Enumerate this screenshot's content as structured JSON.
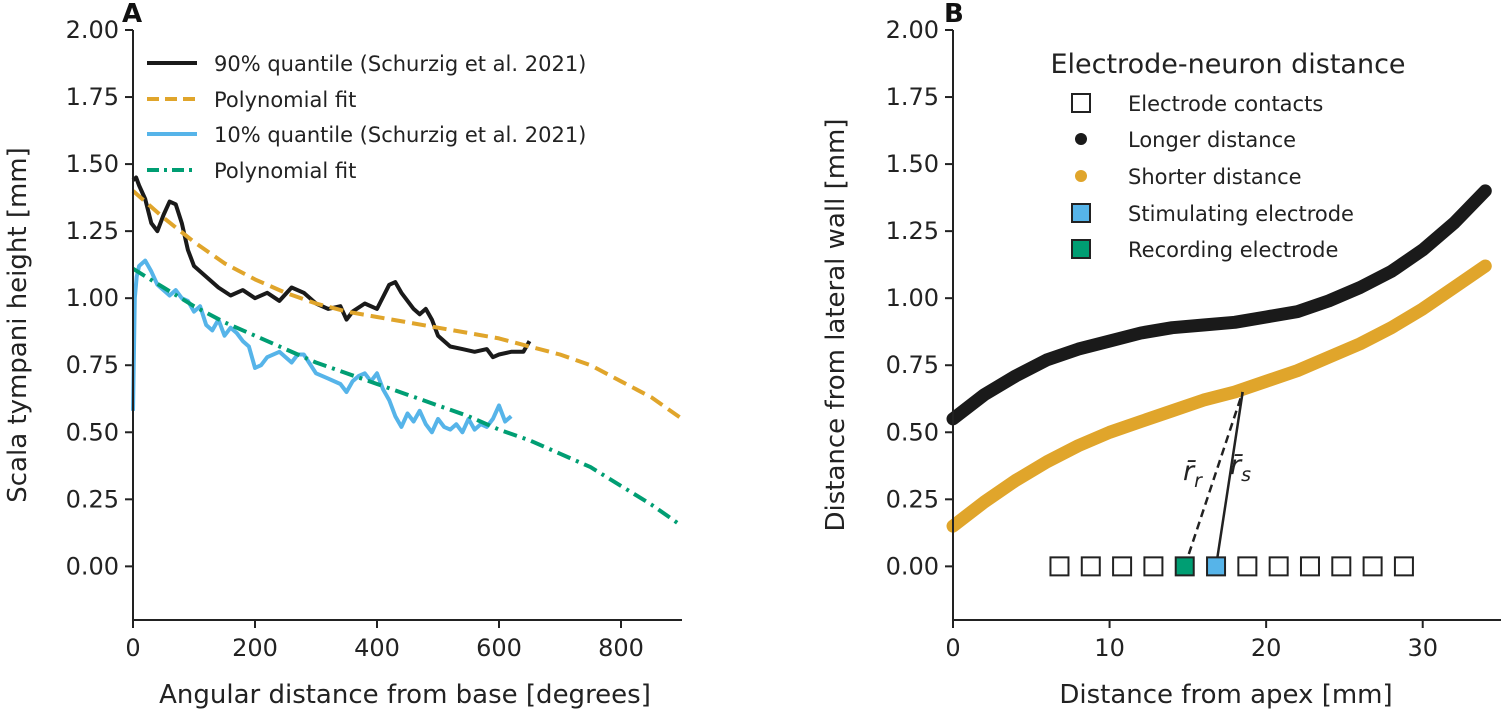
{
  "chart_data": [
    {
      "panel_label": "A",
      "type": "line",
      "xlabel": "Angular distance from base [degrees]",
      "ylabel": "Scala tympani height [mm]",
      "xlim": [
        0,
        900
      ],
      "ylim": [
        -0.2,
        2.0
      ],
      "xticks": [
        0,
        200,
        400,
        600,
        800
      ],
      "yticks": [
        0.0,
        0.25,
        0.5,
        0.75,
        1.0,
        1.25,
        1.5,
        1.75,
        2.0
      ],
      "xtick_labels": [
        "0",
        "200",
        "400",
        "600",
        "800"
      ],
      "ytick_labels": [
        "0.00",
        "0.25",
        "0.50",
        "0.75",
        "1.00",
        "1.25",
        "1.50",
        "1.75",
        "2.00"
      ],
      "legend_position": "top-right",
      "series": [
        {
          "name": "90% quantile (Schurzig et al. 2021)",
          "color": "#1a1a1a",
          "style": "solid",
          "x": [
            0,
            5,
            10,
            20,
            30,
            40,
            50,
            60,
            70,
            80,
            90,
            100,
            120,
            140,
            160,
            180,
            200,
            220,
            240,
            260,
            280,
            300,
            320,
            340,
            350,
            360,
            380,
            400,
            420,
            430,
            440,
            460,
            470,
            480,
            490,
            500,
            520,
            540,
            560,
            580,
            590,
            600,
            620,
            640,
            650
          ],
          "y": [
            1.44,
            1.45,
            1.42,
            1.37,
            1.28,
            1.25,
            1.31,
            1.36,
            1.35,
            1.28,
            1.18,
            1.12,
            1.08,
            1.04,
            1.01,
            1.03,
            1.0,
            1.02,
            0.99,
            1.04,
            1.02,
            0.98,
            0.96,
            0.97,
            0.92,
            0.95,
            0.98,
            0.96,
            1.05,
            1.06,
            1.02,
            0.96,
            0.94,
            0.96,
            0.92,
            0.86,
            0.82,
            0.81,
            0.8,
            0.81,
            0.78,
            0.79,
            0.8,
            0.8,
            0.84
          ]
        },
        {
          "name": "Polynomial fit",
          "color": "#e0a52b",
          "style": "dashed",
          "x": [
            0,
            50,
            100,
            150,
            200,
            250,
            300,
            350,
            400,
            450,
            500,
            550,
            600,
            650,
            700,
            750,
            800,
            850,
            900
          ],
          "y": [
            1.4,
            1.3,
            1.21,
            1.13,
            1.07,
            1.02,
            0.98,
            0.95,
            0.93,
            0.91,
            0.89,
            0.87,
            0.85,
            0.82,
            0.79,
            0.75,
            0.69,
            0.63,
            0.55
          ]
        },
        {
          "name": "10% quantile (Schurzig et al. 2021)",
          "color": "#56b4e9",
          "style": "solid",
          "x": [
            0,
            3,
            6,
            10,
            15,
            20,
            30,
            40,
            50,
            60,
            70,
            80,
            90,
            100,
            110,
            120,
            130,
            140,
            150,
            160,
            170,
            180,
            190,
            200,
            210,
            220,
            240,
            260,
            270,
            280,
            300,
            320,
            340,
            350,
            360,
            370,
            380,
            390,
            400,
            410,
            420,
            430,
            440,
            450,
            460,
            470,
            480,
            490,
            500,
            510,
            520,
            530,
            540,
            550,
            560,
            570,
            580,
            590,
            600,
            610,
            620
          ],
          "y": [
            0.58,
            1.0,
            1.08,
            1.12,
            1.13,
            1.14,
            1.1,
            1.05,
            1.03,
            1.01,
            1.03,
            1.0,
            0.99,
            0.95,
            0.97,
            0.9,
            0.88,
            0.92,
            0.86,
            0.89,
            0.87,
            0.84,
            0.82,
            0.74,
            0.75,
            0.78,
            0.8,
            0.76,
            0.79,
            0.79,
            0.72,
            0.7,
            0.68,
            0.65,
            0.69,
            0.71,
            0.72,
            0.69,
            0.72,
            0.66,
            0.62,
            0.56,
            0.52,
            0.57,
            0.54,
            0.58,
            0.53,
            0.5,
            0.55,
            0.52,
            0.51,
            0.53,
            0.5,
            0.55,
            0.51,
            0.53,
            0.52,
            0.55,
            0.6,
            0.54,
            0.56
          ]
        },
        {
          "name": "Polynomial fit",
          "color": "#009e73",
          "style": "dashdot",
          "x": [
            0,
            50,
            100,
            150,
            200,
            250,
            300,
            350,
            400,
            450,
            500,
            550,
            600,
            650,
            700,
            750,
            800,
            850,
            900
          ],
          "y": [
            1.11,
            1.04,
            0.97,
            0.91,
            0.86,
            0.81,
            0.76,
            0.72,
            0.68,
            0.64,
            0.6,
            0.56,
            0.51,
            0.47,
            0.42,
            0.37,
            0.3,
            0.23,
            0.15
          ]
        }
      ]
    },
    {
      "panel_label": "B",
      "type": "scatter",
      "xlabel": "Distance from apex [mm]",
      "ylabel": "Distance from lateral wall [mm]",
      "xlim": [
        0,
        35
      ],
      "ylim": [
        -0.2,
        2.0
      ],
      "xticks": [
        0,
        10,
        20,
        30
      ],
      "yticks": [
        0.0,
        0.25,
        0.5,
        0.75,
        1.0,
        1.25,
        1.5,
        1.75,
        2.0
      ],
      "xtick_labels": [
        "0",
        "10",
        "20",
        "30"
      ],
      "ytick_labels": [
        "0.00",
        "0.25",
        "0.50",
        "0.75",
        "1.00",
        "1.25",
        "1.50",
        "1.75",
        "2.00"
      ],
      "legend_title": "Electrode-neuron distance",
      "legend_position": "top-center",
      "legend": [
        {
          "label": "Electrode contacts",
          "marker": "square-open",
          "color": "#222222"
        },
        {
          "label": "Longer distance",
          "marker": "circle",
          "color": "#1a1a1a"
        },
        {
          "label": "Shorter distance",
          "marker": "circle",
          "color": "#e0a52b"
        },
        {
          "label": "Stimulating electrode",
          "marker": "square",
          "color": "#56b4e9"
        },
        {
          "label": "Recording electrode",
          "marker": "square",
          "color": "#009e73"
        }
      ],
      "series": [
        {
          "name": "Longer distance",
          "color": "#1a1a1a",
          "x": [
            0,
            2,
            4,
            6,
            8,
            10,
            12,
            14,
            16,
            18,
            20,
            22,
            24,
            26,
            28,
            30,
            32,
            34
          ],
          "y": [
            0.55,
            0.64,
            0.71,
            0.77,
            0.81,
            0.84,
            0.87,
            0.89,
            0.9,
            0.91,
            0.93,
            0.95,
            0.99,
            1.04,
            1.1,
            1.18,
            1.28,
            1.4
          ]
        },
        {
          "name": "Shorter distance",
          "color": "#e0a52b",
          "x": [
            0,
            2,
            4,
            6,
            8,
            10,
            12,
            14,
            16,
            18,
            20,
            22,
            24,
            26,
            28,
            30,
            32,
            34
          ],
          "y": [
            0.15,
            0.24,
            0.32,
            0.39,
            0.45,
            0.5,
            0.54,
            0.58,
            0.62,
            0.65,
            0.69,
            0.73,
            0.78,
            0.83,
            0.89,
            0.96,
            1.04,
            1.12
          ]
        }
      ],
      "electrode_contacts": {
        "x": [
          6.8,
          8.8,
          10.8,
          12.8,
          14.8,
          16.8,
          18.8,
          20.8,
          22.8,
          24.8,
          26.8,
          28.8
        ],
        "y": [
          0,
          0,
          0,
          0,
          0,
          0,
          0,
          0,
          0,
          0,
          0,
          0
        ],
        "recording_index": 4,
        "stimulating_index": 5
      },
      "annotations": [
        {
          "label": "r̄r",
          "main": "r̄",
          "sub": "r",
          "style": "dashed",
          "from": [
            14.8,
            0.0
          ],
          "to": [
            18.5,
            0.65
          ]
        },
        {
          "label": "r̄s",
          "main": "r̄",
          "sub": "s",
          "style": "solid",
          "from": [
            16.8,
            0.0
          ],
          "to": [
            18.5,
            0.65
          ]
        }
      ]
    }
  ]
}
